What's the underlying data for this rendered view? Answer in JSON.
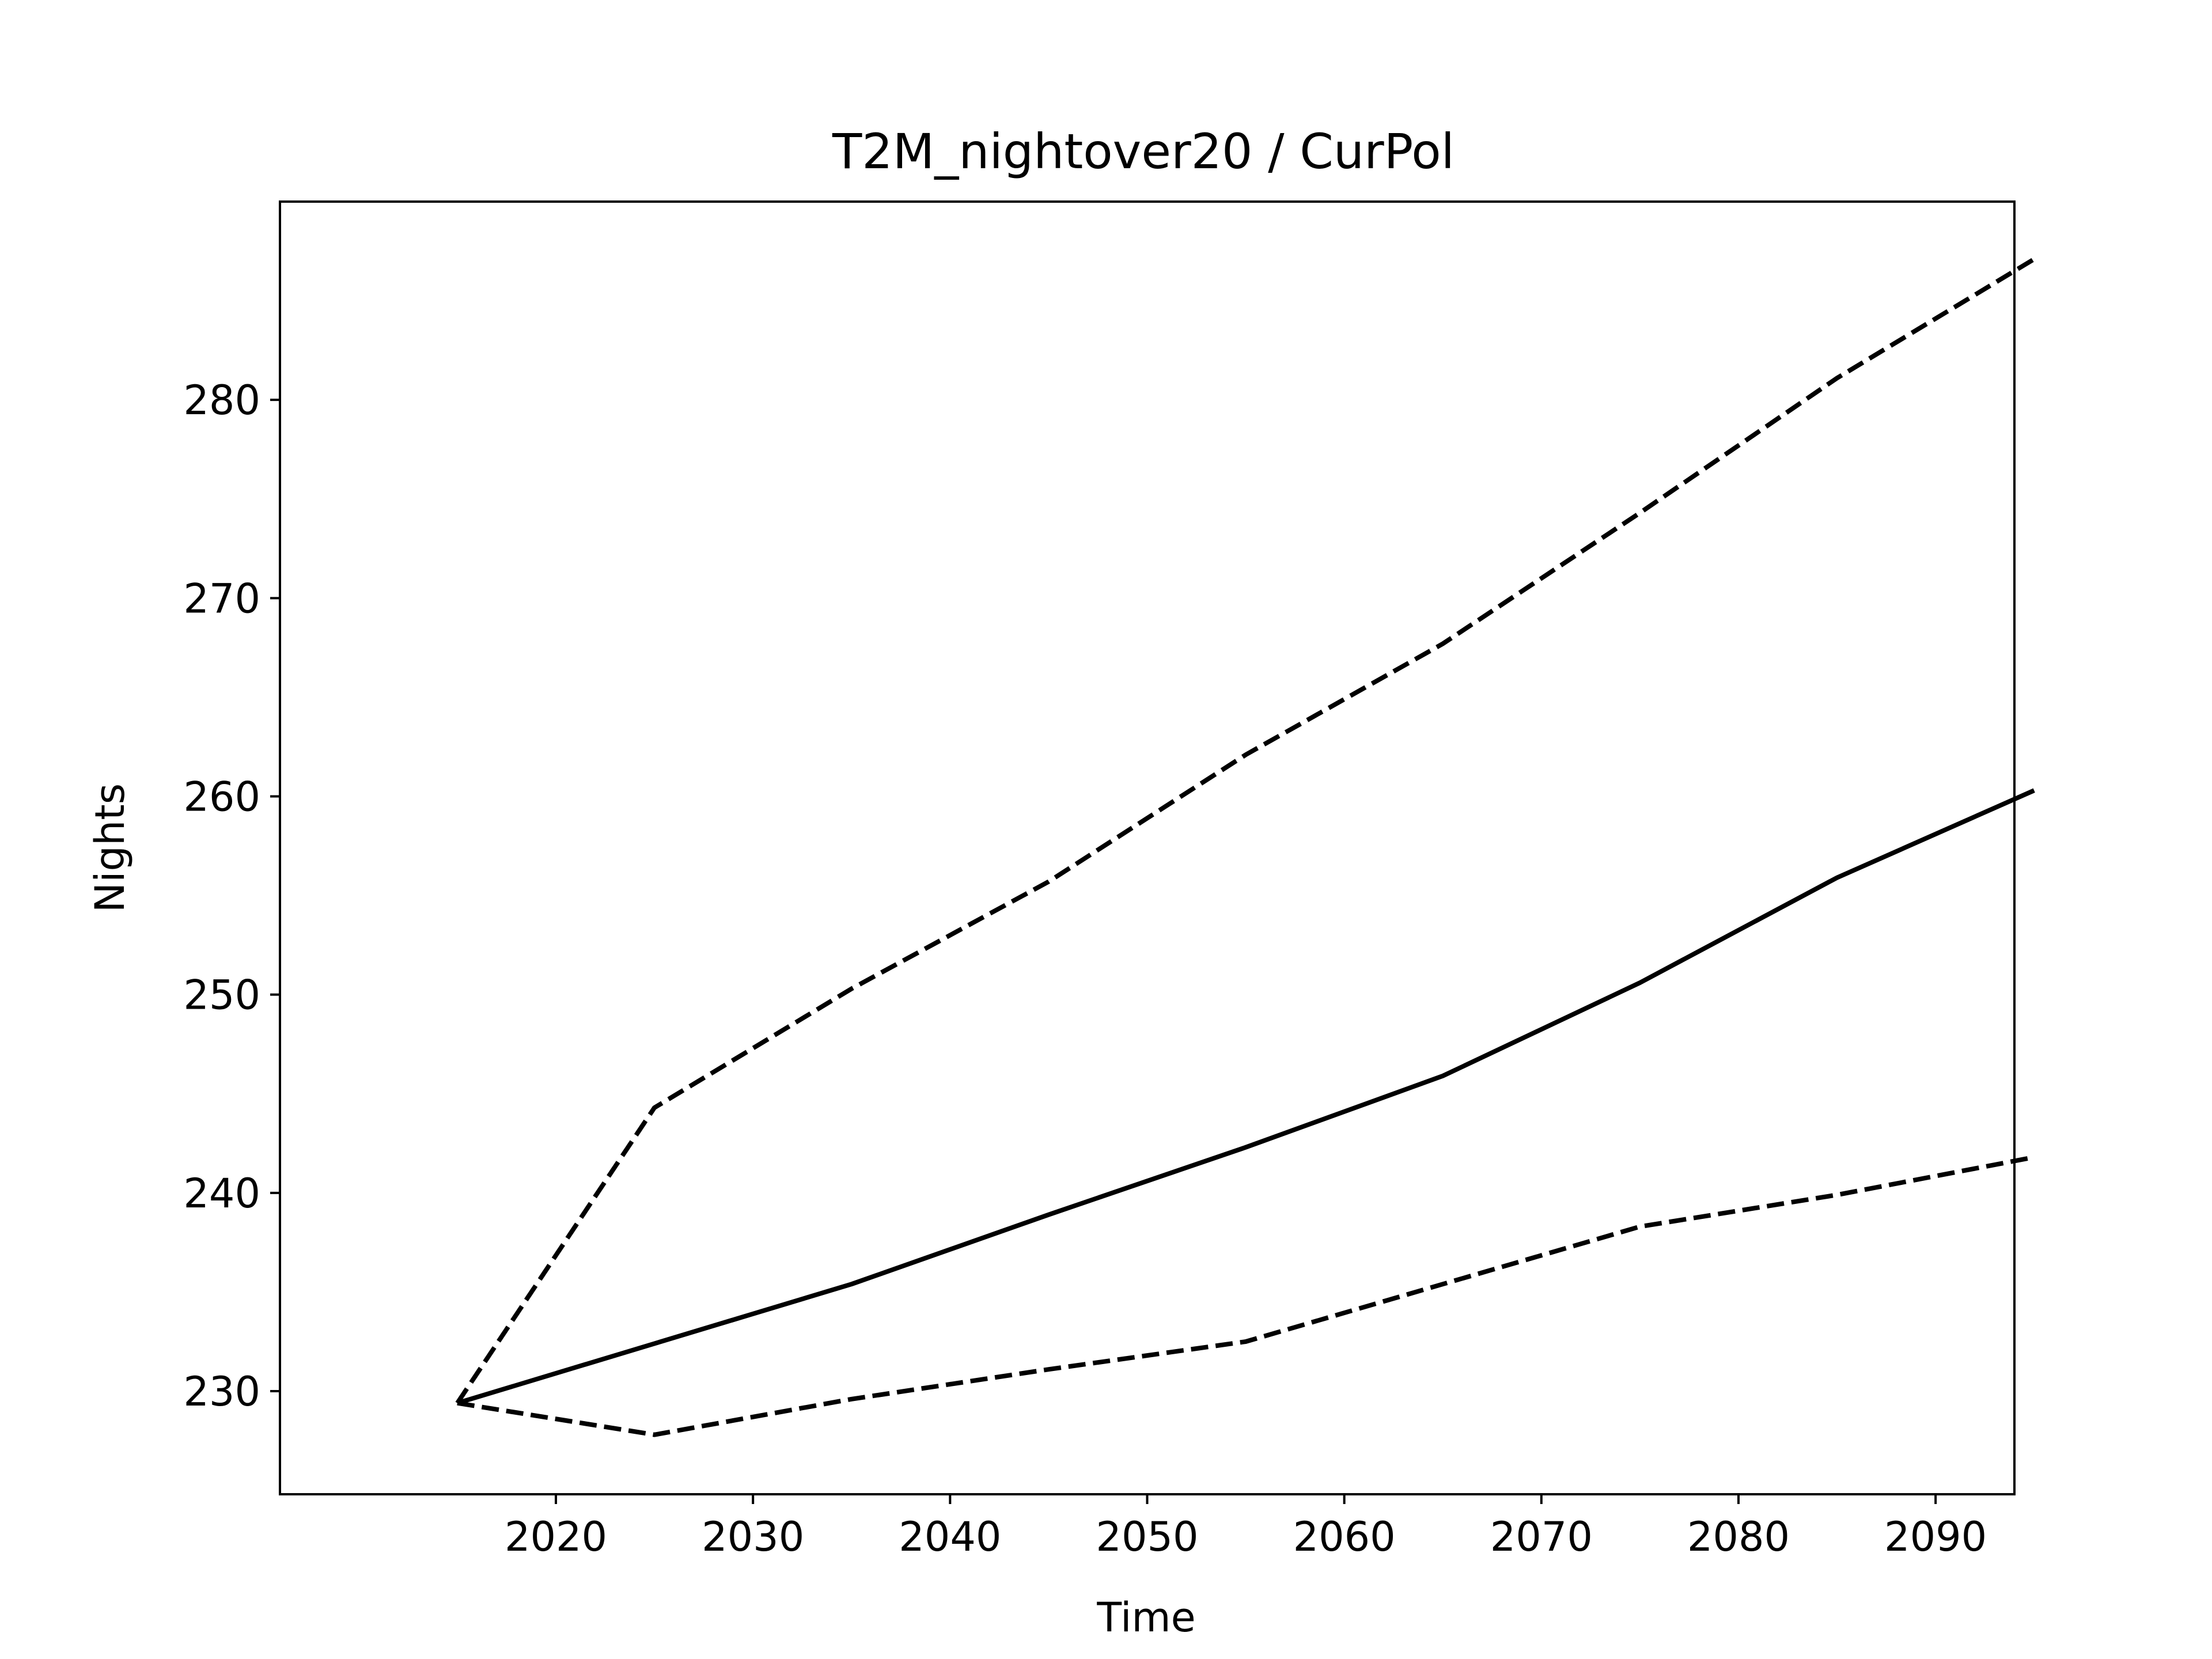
{
  "chart_data": {
    "type": "line",
    "title": "T2M_nightover20 / CurPol",
    "xlabel": "Time",
    "ylabel": "Nights",
    "x": [
      2015,
      2025,
      2035,
      2045,
      2055,
      2065,
      2075,
      2085,
      2095
    ],
    "xlim": [
      2006,
      2094
    ],
    "ylim": [
      224.8,
      290.0
    ],
    "xticks": [
      2020,
      2030,
      2040,
      2050,
      2060,
      2070,
      2080,
      2090
    ],
    "yticks": [
      230,
      240,
      250,
      260,
      270,
      280
    ],
    "grid": false,
    "series": [
      {
        "style": "solid",
        "values": [
          229.4,
          232.4,
          235.4,
          238.9,
          242.3,
          245.9,
          250.6,
          255.9,
          260.3
        ]
      },
      {
        "style": "dashed",
        "values": [
          229.4,
          244.3,
          250.3,
          255.7,
          262.1,
          267.7,
          274.3,
          281.1,
          287.1
        ]
      },
      {
        "style": "dashed",
        "values": [
          229.4,
          227.8,
          229.6,
          231.1,
          232.5,
          235.4,
          238.3,
          239.9,
          241.8
        ]
      }
    ],
    "colors": {
      "line": "#000000",
      "frame": "#000000",
      "background": "#ffffff"
    }
  }
}
